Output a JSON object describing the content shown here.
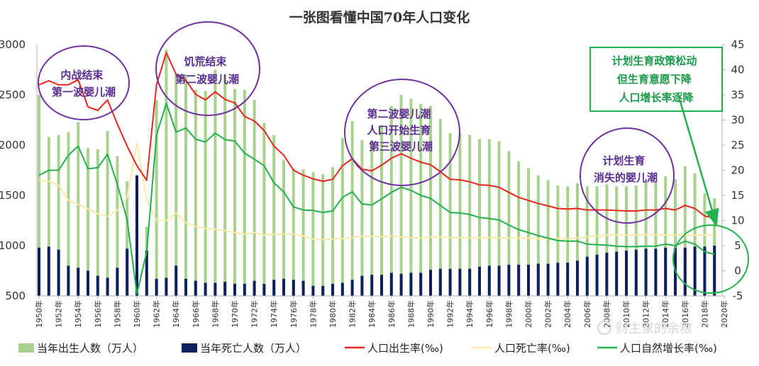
{
  "chart_data": {
    "type": "bar+line",
    "title": "一张图看懂中国70年人口变化",
    "x": [
      1950,
      1951,
      1952,
      1953,
      1954,
      1955,
      1956,
      1957,
      1958,
      1959,
      1960,
      1961,
      1962,
      1963,
      1964,
      1965,
      1966,
      1967,
      1968,
      1969,
      1970,
      1971,
      1972,
      1973,
      1974,
      1975,
      1976,
      1977,
      1978,
      1979,
      1980,
      1981,
      1982,
      1983,
      1984,
      1985,
      1986,
      1987,
      1988,
      1989,
      1990,
      1991,
      1992,
      1993,
      1994,
      1995,
      1996,
      1997,
      1998,
      1999,
      2000,
      2001,
      2002,
      2003,
      2004,
      2005,
      2006,
      2007,
      2008,
      2009,
      2010,
      2011,
      2012,
      2013,
      2014,
      2015,
      2016,
      2017,
      2018,
      2019
    ],
    "x_tick_labels": [
      "1950年",
      "1952年",
      "1954年",
      "1956年",
      "1958年",
      "1960年",
      "1962年",
      "1964年",
      "1966年",
      "1968年",
      "1970年",
      "1972年",
      "1974年",
      "1976年",
      "1978年",
      "1980年",
      "1982年",
      "1984年",
      "1986年",
      "1988年",
      "1990年",
      "1992年",
      "1994年",
      "1996年",
      "1998年",
      "2000年",
      "2002年",
      "2004年",
      "2006年",
      "2008年",
      "2010年",
      "2012年",
      "2014年",
      "2016年",
      "2018年",
      "2020年"
    ],
    "y_left": {
      "ticks": [
        "500",
        "1000",
        "1500",
        "2000",
        "2500",
        "3000"
      ],
      "range": [
        500,
        3000
      ]
    },
    "y_right": {
      "ticks": [
        "-5",
        "0",
        "5",
        "10",
        "15",
        "20",
        "25",
        "30",
        "35",
        "40",
        "45"
      ],
      "range": [
        -5,
        45
      ]
    },
    "series": [
      {
        "name": "当年出生人数（万人）",
        "type": "bar",
        "axis": "left",
        "color": "#a9d18e",
        "values": [
          2500,
          2080,
          2100,
          2130,
          2230,
          1970,
          1960,
          2140,
          1890,
          1640,
          1390,
          1190,
          2450,
          2950,
          2710,
          2700,
          2550,
          2540,
          2750,
          2700,
          2560,
          2550,
          2450,
          2220,
          2100,
          1850,
          1770,
          1760,
          1730,
          1710,
          1780,
          2070,
          2240,
          2050,
          2050,
          2200,
          2390,
          2500,
          2460,
          2410,
          2390,
          2260,
          2120,
          2120,
          2100,
          2060,
          2060,
          2040,
          1940,
          1840,
          1770,
          1700,
          1650,
          1600,
          1590,
          1620,
          1590,
          1590,
          1610,
          1590,
          1590,
          1600,
          1640,
          1640,
          1690,
          1660,
          1790,
          1720,
          1520,
          1470
        ]
      },
      {
        "name": "当年死亡人数（万人）",
        "type": "bar",
        "axis": "left",
        "color": "#0d1f5c",
        "values": [
          980,
          990,
          960,
          800,
          780,
          750,
          700,
          680,
          780,
          970,
          1700,
          950,
          670,
          680,
          800,
          670,
          650,
          630,
          630,
          640,
          620,
          620,
          650,
          620,
          660,
          670,
          660,
          650,
          600,
          600,
          620,
          630,
          660,
          700,
          710,
          710,
          730,
          720,
          730,
          730,
          760,
          770,
          770,
          770,
          770,
          790,
          800,
          800,
          810,
          810,
          810,
          820,
          820,
          830,
          830,
          850,
          890,
          910,
          930,
          940,
          950,
          960,
          970,
          970,
          980,
          980,
          980,
          990,
          990,
          1000
        ]
      },
      {
        "name": "人口出生率(‰)",
        "type": "line",
        "axis": "right",
        "color": "#e8261c",
        "values": [
          37.0,
          37.8,
          37.0,
          37.0,
          38.0,
          32.6,
          31.9,
          34.0,
          29.2,
          24.8,
          20.9,
          18.0,
          37.0,
          43.4,
          39.1,
          37.9,
          35.1,
          34.0,
          35.6,
          34.1,
          33.4,
          30.7,
          29.8,
          27.9,
          24.8,
          23.0,
          20.0,
          19.0,
          18.3,
          17.8,
          18.2,
          20.9,
          22.3,
          20.2,
          19.9,
          21.0,
          22.4,
          23.3,
          22.4,
          21.6,
          21.1,
          19.7,
          18.2,
          18.1,
          17.7,
          17.1,
          17.0,
          16.6,
          15.6,
          14.6,
          14.0,
          13.4,
          12.9,
          12.4,
          12.3,
          12.4,
          12.1,
          12.1,
          12.1,
          12.0,
          11.9,
          11.9,
          12.1,
          12.1,
          12.4,
          12.1,
          13.0,
          12.4,
          10.9,
          10.5
        ]
      },
      {
        "name": "人口死亡率(‰)",
        "type": "line",
        "axis": "right",
        "color": "#fde9a8",
        "values": [
          18.0,
          17.8,
          17.0,
          14.0,
          13.2,
          12.3,
          11.4,
          10.8,
          12.0,
          14.6,
          25.4,
          14.2,
          10.0,
          10.0,
          11.5,
          9.5,
          8.8,
          8.4,
          8.2,
          8.0,
          7.6,
          7.3,
          7.6,
          7.1,
          7.3,
          7.3,
          7.3,
          6.9,
          6.3,
          6.2,
          6.3,
          6.4,
          6.6,
          6.9,
          6.8,
          6.8,
          6.9,
          6.7,
          6.6,
          6.5,
          6.7,
          6.7,
          6.6,
          6.6,
          6.5,
          6.6,
          6.6,
          6.5,
          6.5,
          6.5,
          6.5,
          6.4,
          6.4,
          6.4,
          6.4,
          6.5,
          6.8,
          6.9,
          7.1,
          7.1,
          7.1,
          7.1,
          7.2,
          7.2,
          7.1,
          7.1,
          7.1,
          7.1,
          7.1,
          7.1
        ]
      },
      {
        "name": "人口自然增长率(‰)",
        "type": "line",
        "axis": "right",
        "color": "#22b14c",
        "values": [
          19.0,
          20.0,
          20.0,
          23.0,
          24.8,
          20.3,
          20.5,
          23.2,
          17.2,
          10.2,
          -4.6,
          3.8,
          27.0,
          33.3,
          27.6,
          28.4,
          26.2,
          25.6,
          27.4,
          26.1,
          25.8,
          23.4,
          22.2,
          20.9,
          17.5,
          15.7,
          12.7,
          12.1,
          12.0,
          11.6,
          11.9,
          14.6,
          15.7,
          13.3,
          13.1,
          14.3,
          15.6,
          16.6,
          16.0,
          15.0,
          14.4,
          13.0,
          11.6,
          11.5,
          11.2,
          10.6,
          10.4,
          10.1,
          9.1,
          8.2,
          7.6,
          7.0,
          6.5,
          6.0,
          5.9,
          5.9,
          5.3,
          5.2,
          5.1,
          4.9,
          4.8,
          4.8,
          4.9,
          4.9,
          5.3,
          5.0,
          5.9,
          5.3,
          3.8,
          3.3
        ]
      }
    ]
  },
  "annotations": [
    {
      "lines": [
        "内战结束",
        "第一波婴儿潮"
      ]
    },
    {
      "lines": [
        "饥荒结束",
        "第二波婴儿潮"
      ]
    },
    {
      "lines": [
        "第二波婴儿潮",
        "人口开始生育",
        "第三波婴儿潮"
      ]
    },
    {
      "lines": [
        "计划生育",
        "消失的婴儿潮"
      ]
    },
    {
      "lines": [
        "计划生育政策松动",
        "但生育意愿下降",
        "人口增长率逐降"
      ]
    }
  ],
  "watermark": "财主家的余粮",
  "colors": {
    "circle": "#7030a0",
    "ann_text_purple": "#5a2d91",
    "ann_text_green": "#1a9a4a",
    "axis": "#b0b0b0"
  }
}
